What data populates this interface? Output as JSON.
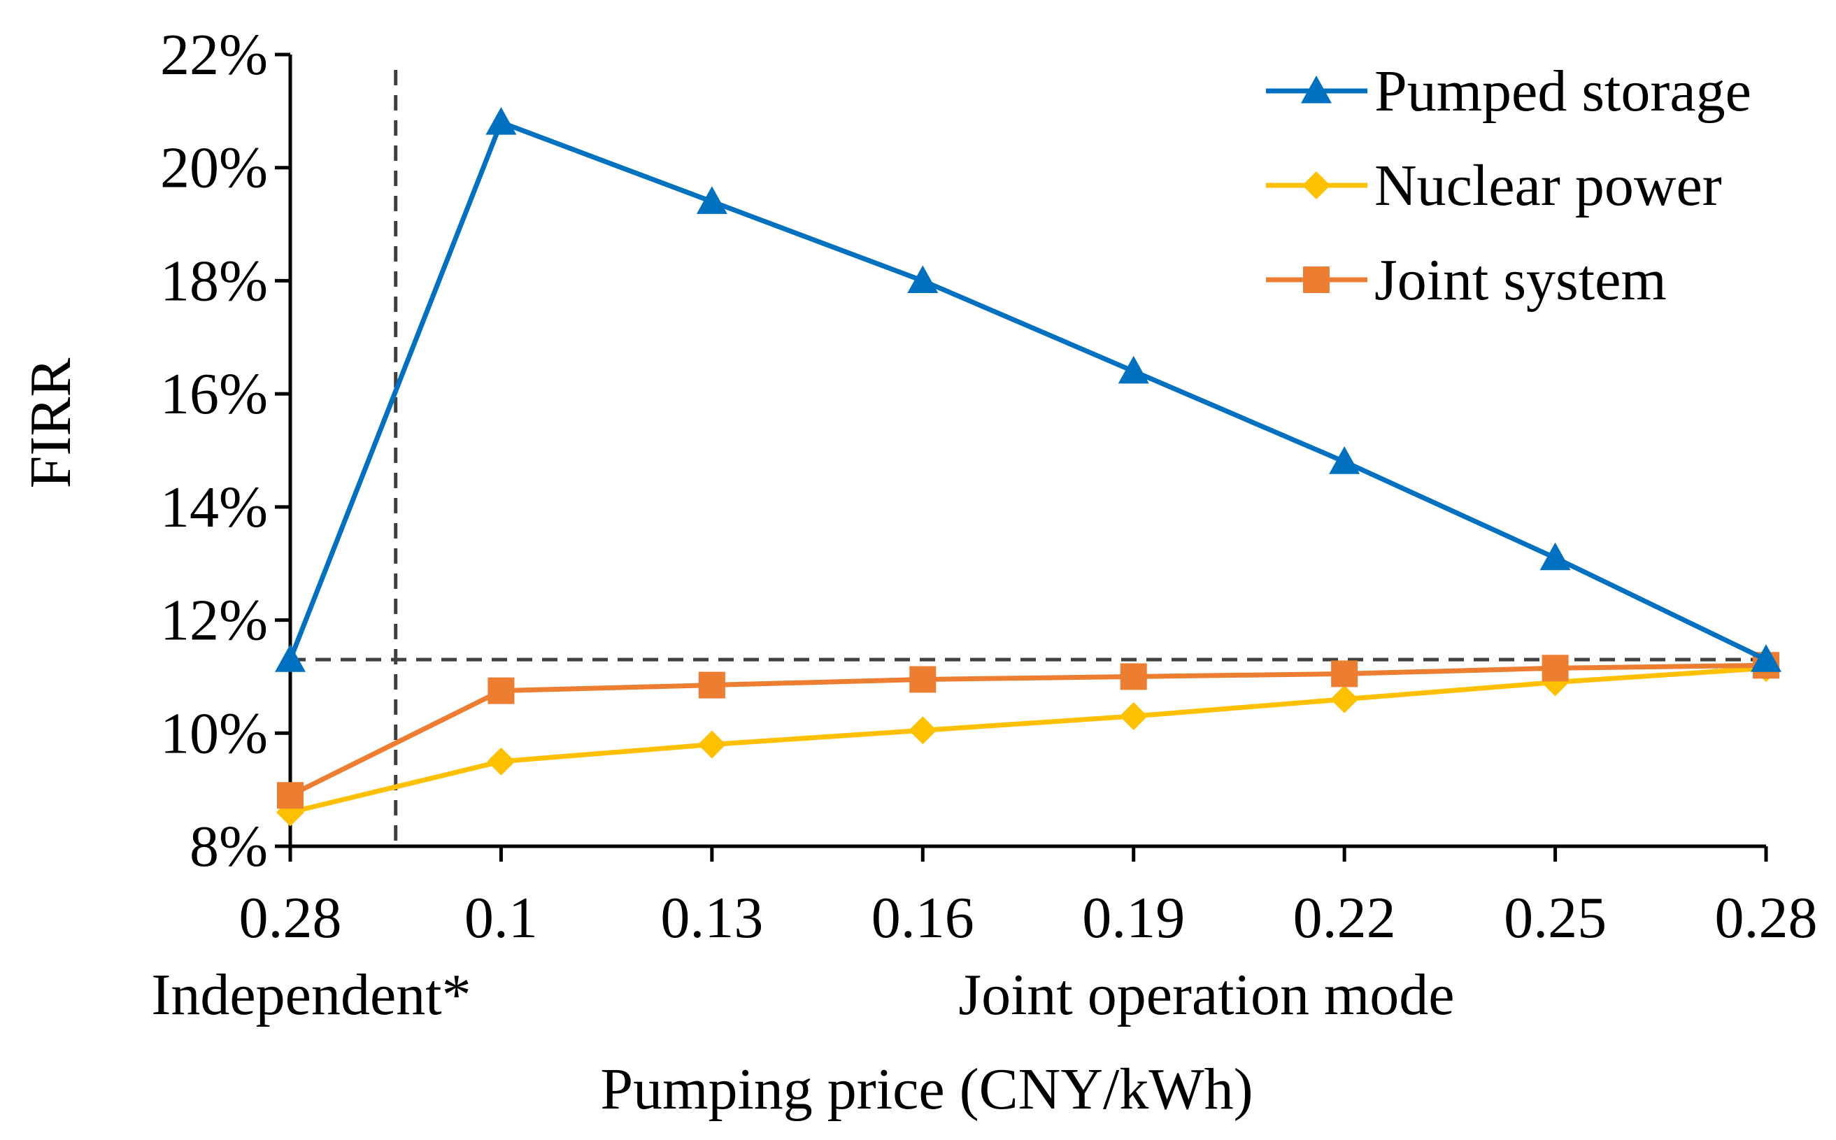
{
  "chart_data": {
    "type": "line",
    "ylabel": "FIRR",
    "xlabel": "Pumping price (CNY/kWh)",
    "group_labels": [
      "Independent*",
      "Joint operation mode"
    ],
    "categories": [
      "0.28",
      "0.1",
      "0.13",
      "0.16",
      "0.19",
      "0.22",
      "0.25",
      "0.28"
    ],
    "ylim": [
      8,
      22
    ],
    "yticks": [
      8,
      10,
      12,
      14,
      16,
      18,
      20,
      22
    ],
    "ytick_labels": [
      "8%",
      "10%",
      "12%",
      "14%",
      "16%",
      "18%",
      "20%",
      "22%"
    ],
    "reference_line": {
      "orientation": "horizontal",
      "value": 11.3,
      "style": "dashed"
    },
    "group_separator": {
      "orientation": "vertical",
      "after_category_index": 0,
      "style": "dashed"
    },
    "legend_position": "top-right",
    "series": [
      {
        "name": "Pumped storage",
        "color": "#0070C0",
        "marker": "triangle",
        "values": [
          11.3,
          20.8,
          19.4,
          18.0,
          16.4,
          14.8,
          13.1,
          11.3
        ]
      },
      {
        "name": "Nuclear power",
        "color": "#FFC000",
        "marker": "diamond",
        "values": [
          8.6,
          9.5,
          9.8,
          10.05,
          10.3,
          10.6,
          10.9,
          11.15
        ]
      },
      {
        "name": "Joint system",
        "color": "#ED7D31",
        "marker": "square",
        "values": [
          8.9,
          10.75,
          10.85,
          10.95,
          11.0,
          11.05,
          11.15,
          11.2
        ]
      }
    ]
  }
}
